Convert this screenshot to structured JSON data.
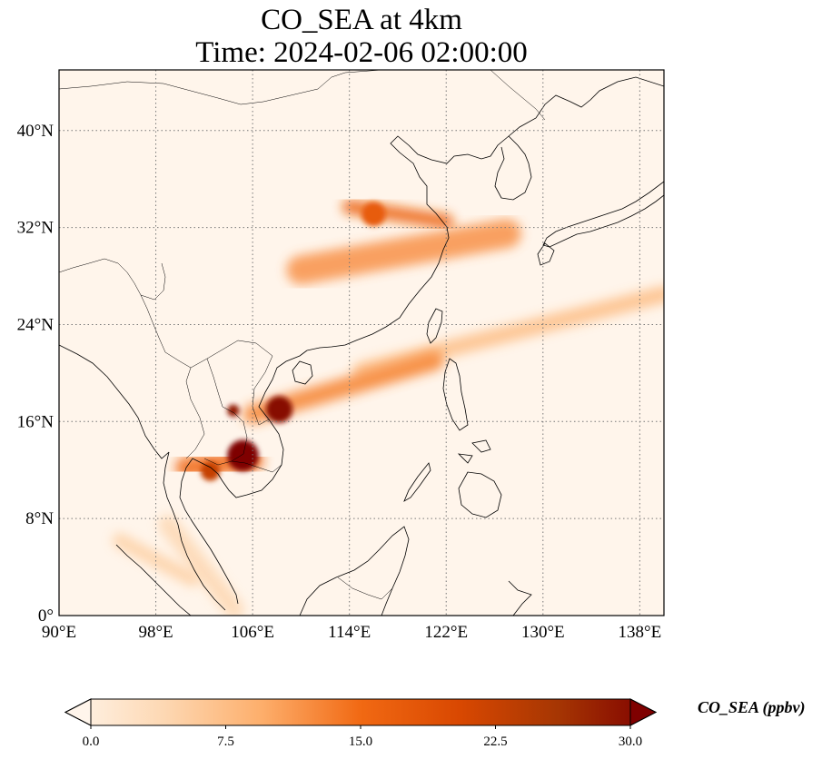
{
  "title": {
    "line1": "CO_SEA at 4km",
    "line2": "Time: 2024-02-06 02:00:00"
  },
  "map_data": {
    "lon_range": [
      90,
      140
    ],
    "lat_range": [
      0,
      45
    ],
    "gridlines": "dotted",
    "lon_ticks": [
      {
        "value": 90,
        "label": "90°E"
      },
      {
        "value": 98,
        "label": "98°E"
      },
      {
        "value": 106,
        "label": "106°E"
      },
      {
        "value": 114,
        "label": "114°E"
      },
      {
        "value": 122,
        "label": "122°E"
      },
      {
        "value": 130,
        "label": "130°E"
      },
      {
        "value": 138,
        "label": "138°E"
      }
    ],
    "lat_ticks": [
      {
        "value": 0,
        "label": "0°"
      },
      {
        "value": 8,
        "label": "8°N"
      },
      {
        "value": 16,
        "label": "16°N"
      },
      {
        "value": 24,
        "label": "24°N"
      },
      {
        "value": 32,
        "label": "32°N"
      },
      {
        "value": 40,
        "label": "40°N"
      }
    ],
    "plumes": [
      {
        "name": "central-china-plume",
        "from": [
          110,
          28.5
        ],
        "to": [
          127,
          31.5
        ],
        "width": 2.4,
        "value": 12
      },
      {
        "name": "yangtze-band",
        "from": [
          114,
          33.7
        ],
        "to": [
          122,
          32.5
        ],
        "width": 1.2,
        "value": 16
      },
      {
        "name": "taiwan-strait-band",
        "from": [
          115,
          20.2
        ],
        "to": [
          140,
          26.5
        ],
        "width": 1.4,
        "value": 8
      },
      {
        "name": "vietnam-laos-band",
        "from": [
          106,
          16.6
        ],
        "to": [
          121,
          21
        ],
        "width": 1.6,
        "value": 13
      },
      {
        "name": "thailand-band",
        "from": [
          100.5,
          12.2
        ],
        "to": [
          106,
          12.8
        ],
        "width": 1.8,
        "value": 15
      },
      {
        "name": "peninsula-band",
        "from": [
          99,
          7.5
        ],
        "to": [
          104.5,
          0.5
        ],
        "width": 1.6,
        "value": 5
      },
      {
        "name": "sumatra-band",
        "from": [
          95,
          6.2
        ],
        "to": [
          101,
          3
        ],
        "width": 1.2,
        "value": 6
      }
    ],
    "hotspots": [
      {
        "name": "cambodia-hotspot",
        "lon": 105.2,
        "lat": 13.2,
        "radius": 1.3,
        "value": 30
      },
      {
        "name": "thailand-hotspot",
        "lon": 102.5,
        "lat": 11.9,
        "radius": 0.8,
        "value": 22
      },
      {
        "name": "laos-hotspot",
        "lon": 104.4,
        "lat": 16.9,
        "radius": 0.5,
        "value": 28
      },
      {
        "name": "vietnam-hotspot",
        "lon": 108.2,
        "lat": 17,
        "radius": 1.1,
        "value": 29
      },
      {
        "name": "yangtze-hotspot",
        "lon": 116,
        "lat": 33.1,
        "radius": 1.0,
        "value": 17
      }
    ]
  },
  "colorbar": {
    "label": "CO_SEA (ppbv)",
    "min": 0,
    "max": 30,
    "extend": "both",
    "ticks": [
      {
        "value": 0,
        "label": "0.0"
      },
      {
        "value": 7.5,
        "label": "7.5"
      },
      {
        "value": 15,
        "label": "15.0"
      },
      {
        "value": 22.5,
        "label": "22.5"
      },
      {
        "value": 30,
        "label": "30.0"
      }
    ],
    "colors": [
      "#fff5eb",
      "#fdd8b3",
      "#fdae6b",
      "#f16913",
      "#d94801",
      "#a63603",
      "#7f0000"
    ]
  }
}
